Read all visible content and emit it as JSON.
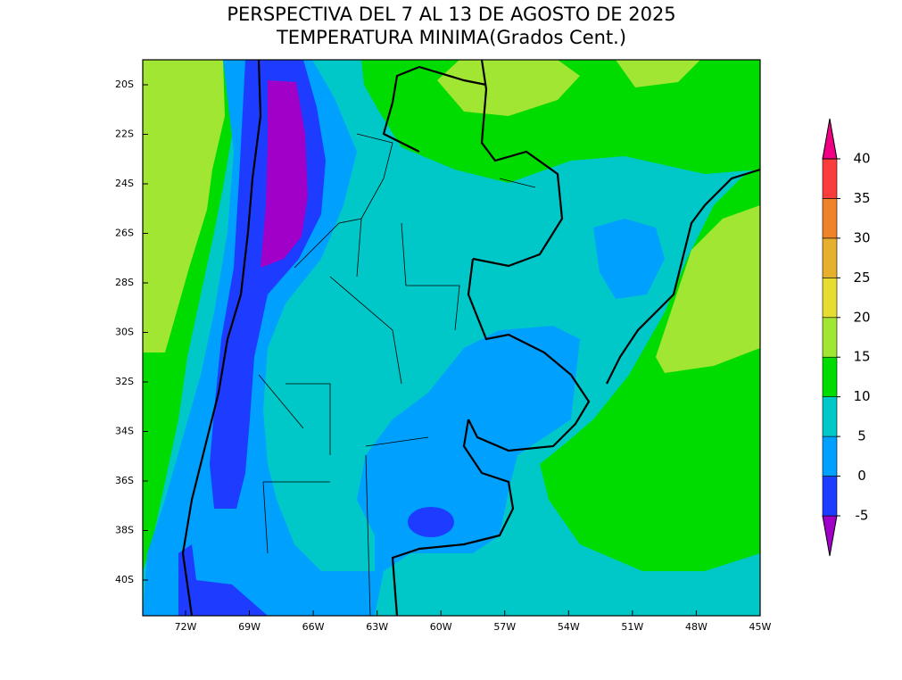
{
  "title": [
    "PERSPECTIVA DEL 7 AL 13 DE AGOSTO DE 2025",
    "TEMPERATURA MINIMA(Grados Cent.)"
  ],
  "lat_labels": [
    "20S",
    "22S",
    "24S",
    "26S",
    "28S",
    "30S",
    "32S",
    "34S",
    "36S",
    "38S",
    "40S"
  ],
  "lon_labels": [
    "72W",
    "69W",
    "66W",
    "63W",
    "60W",
    "57W",
    "54W",
    "51W",
    "48W",
    "45W"
  ],
  "colorbar": {
    "levels": [
      -5,
      0,
      5,
      10,
      15,
      20,
      25,
      30,
      35,
      40
    ],
    "colors": [
      "#a000c8",
      "#1e3cff",
      "#00a0ff",
      "#00c8c8",
      "#00dc00",
      "#a0e632",
      "#e6dc32",
      "#e6af2d",
      "#f08228",
      "#fa3c3c",
      "#f00082"
    ]
  }
}
